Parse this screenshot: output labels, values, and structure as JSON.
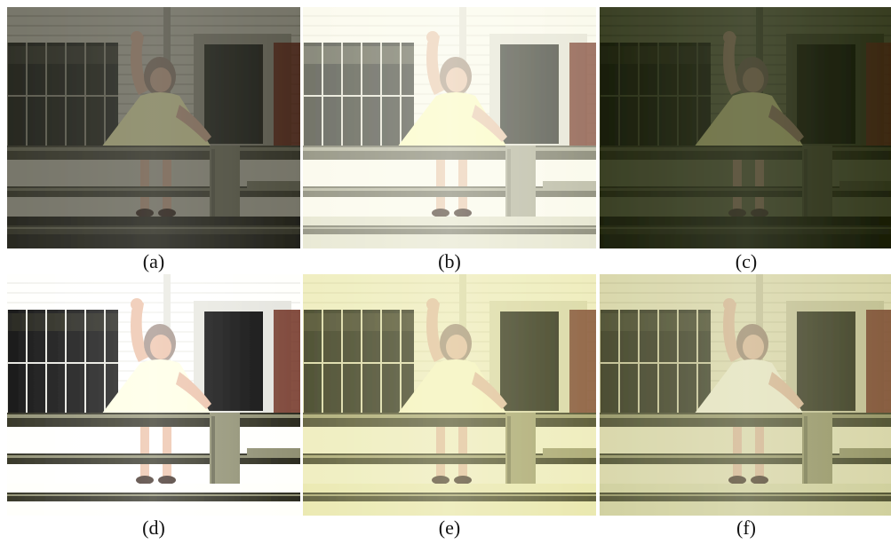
{
  "figure": {
    "panels": [
      {
        "label": "(a)",
        "variant": "original-dark",
        "tint": "#1a1a10",
        "tint_opacity": 0.35,
        "brightness": 0.8
      },
      {
        "label": "(b)",
        "variant": "bright-washed",
        "tint": "#f4f2e4",
        "tint_opacity": 0.25,
        "brightness": 1.15
      },
      {
        "label": "(c)",
        "variant": "dark-green",
        "tint": "#1d2608",
        "tint_opacity": 0.45,
        "brightness": 0.7
      },
      {
        "label": "(d)",
        "variant": "high-contrast",
        "tint": "#ffffff",
        "tint_opacity": 0.0,
        "brightness": 1.1
      },
      {
        "label": "(e)",
        "variant": "warm-yellow",
        "tint": "#e8e6a0",
        "tint_opacity": 0.22,
        "brightness": 1.05
      },
      {
        "label": "(f)",
        "variant": "muted-yellow",
        "tint": "#c8c87a",
        "tint_opacity": 0.18,
        "brightness": 1.0
      }
    ]
  }
}
